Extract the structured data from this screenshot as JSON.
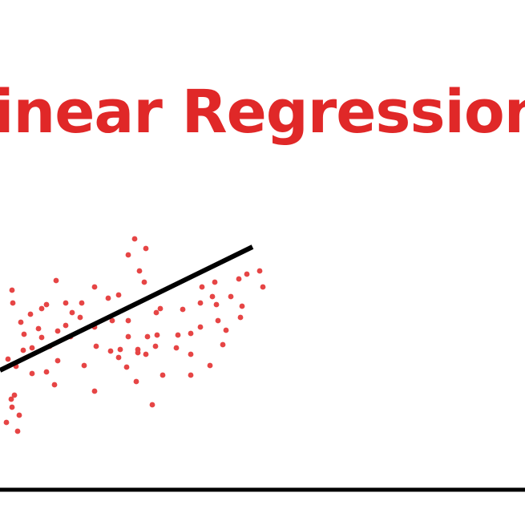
{
  "title": "Linear Regression",
  "colors": {
    "title": "#e02828",
    "points": "#e64545",
    "line": "#000000",
    "axis": "#000000",
    "background": "#ffffff"
  },
  "chart_data": {
    "type": "scatter",
    "title": "Linear Regression",
    "xlabel": "",
    "ylabel": "",
    "grid": false,
    "legend": "none",
    "series": [
      {
        "values": [
          [
            22,
            538
          ],
          [
            8,
            527
          ],
          [
            24,
            518
          ],
          [
            15,
            508
          ],
          [
            14,
            498
          ],
          [
            18,
            493
          ],
          [
            40,
            466
          ],
          [
            68,
            480
          ],
          [
            58,
            464
          ],
          [
            72,
            450
          ],
          [
            20,
            457
          ],
          [
            10,
            448
          ],
          [
            29,
            437
          ],
          [
            40,
            434
          ],
          [
            62,
            432
          ],
          [
            52,
            421
          ],
          [
            48,
            410
          ],
          [
            30,
            417
          ],
          [
            72,
            413
          ],
          [
            82,
            406
          ],
          [
            100,
            396
          ],
          [
            16,
            378
          ],
          [
            52,
            385
          ],
          [
            38,
            392
          ],
          [
            82,
            378
          ],
          [
            102,
            378
          ],
          [
            90,
            390
          ],
          [
            70,
            350
          ],
          [
            15,
            362
          ],
          [
            26,
            402
          ],
          [
            118,
            358
          ],
          [
            135,
            372
          ],
          [
            148,
            368
          ],
          [
            168,
            298
          ],
          [
            182,
            310
          ],
          [
            160,
            318
          ],
          [
            174,
            338
          ],
          [
            180,
            352
          ],
          [
            195,
            390
          ],
          [
            200,
            385
          ],
          [
            118,
            408
          ],
          [
            140,
            400
          ],
          [
            160,
            400
          ],
          [
            160,
            420
          ],
          [
            150,
            436
          ],
          [
            120,
            432
          ],
          [
            138,
            438
          ],
          [
            105,
            456
          ],
          [
            118,
            488
          ],
          [
            148,
            446
          ],
          [
            172,
            436
          ],
          [
            172,
            440
          ],
          [
            158,
            458
          ],
          [
            182,
            442
          ],
          [
            194,
            432
          ],
          [
            196,
            418
          ],
          [
            184,
            420
          ],
          [
            203,
            468
          ],
          [
            190,
            505
          ],
          [
            170,
            476
          ],
          [
            222,
            418
          ],
          [
            220,
            434
          ],
          [
            238,
            416
          ],
          [
            238,
            442
          ],
          [
            262,
            456
          ],
          [
            272,
            400
          ],
          [
            282,
            412
          ],
          [
            300,
            396
          ],
          [
            265,
            370
          ],
          [
            288,
            370
          ],
          [
            302,
            382
          ],
          [
            298,
            348
          ],
          [
            308,
            342
          ],
          [
            324,
            338
          ],
          [
            328,
            358
          ],
          [
            250,
            378
          ],
          [
            252,
            358
          ],
          [
            268,
            352
          ],
          [
            278,
            430
          ],
          [
            250,
            408
          ],
          [
            228,
            386
          ],
          [
            238,
            468
          ],
          [
            270,
            380
          ],
          [
            58,
            380
          ],
          [
            88,
            420
          ]
        ]
      }
    ],
    "regression_line": [
      [
        0,
        462
      ],
      [
        315,
        308
      ]
    ],
    "baseline_y": 611
  }
}
